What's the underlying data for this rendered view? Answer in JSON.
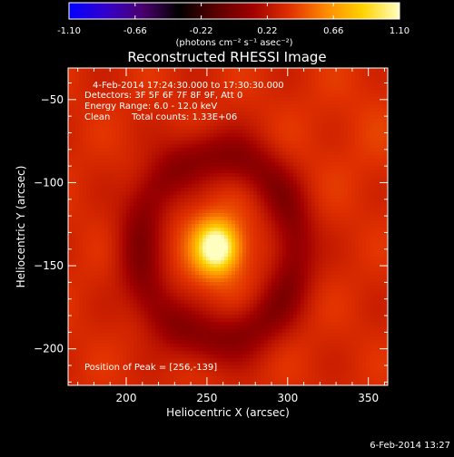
{
  "colorbar": {
    "ticks": [
      "-1.10",
      "-0.66",
      "-0.22",
      "0.22",
      "0.66",
      "1.10"
    ],
    "unit_label": "(photons cm⁻² s⁻¹ asec⁻²)",
    "min": -1.1,
    "max": 1.1
  },
  "chart_data": {
    "type": "heatmap",
    "title": "Reconstructed RHESSI Image",
    "xlabel": "Heliocentric X (arcsec)",
    "ylabel": "Heliocentric Y (arcsec)",
    "xlim": [
      164,
      362
    ],
    "ylim": [
      -222,
      -31
    ],
    "xticks": [
      "200",
      "250",
      "300",
      "350"
    ],
    "yticks": [
      "-50",
      "-100",
      "-150",
      "-200"
    ],
    "annotations": {
      "time_range": "4-Feb-2014 17:24:30.000 to 17:30:30.000",
      "detectors": "Detectors: 3F 5F 6F 7F 8F 9F, Att 0",
      "energy_range": "Energy Range: 6.0 - 12.0 keV",
      "algorithm": "Clean",
      "total_counts": "Total counts: 1.33E+06",
      "peak_position": "Position of Peak = [256,-139]"
    },
    "peak": {
      "x": 256,
      "y": -139,
      "value": 1.1
    },
    "ring_radius_arcsec": 48,
    "color_table": [
      "#0000ff",
      "#3300cc",
      "#4a006e",
      "#000000",
      "#5a0000",
      "#a00000",
      "#e03000",
      "#ff8a00",
      "#ffd200",
      "#ffffc0"
    ]
  },
  "footer": {
    "date": "6-Feb-2014 13:27"
  }
}
